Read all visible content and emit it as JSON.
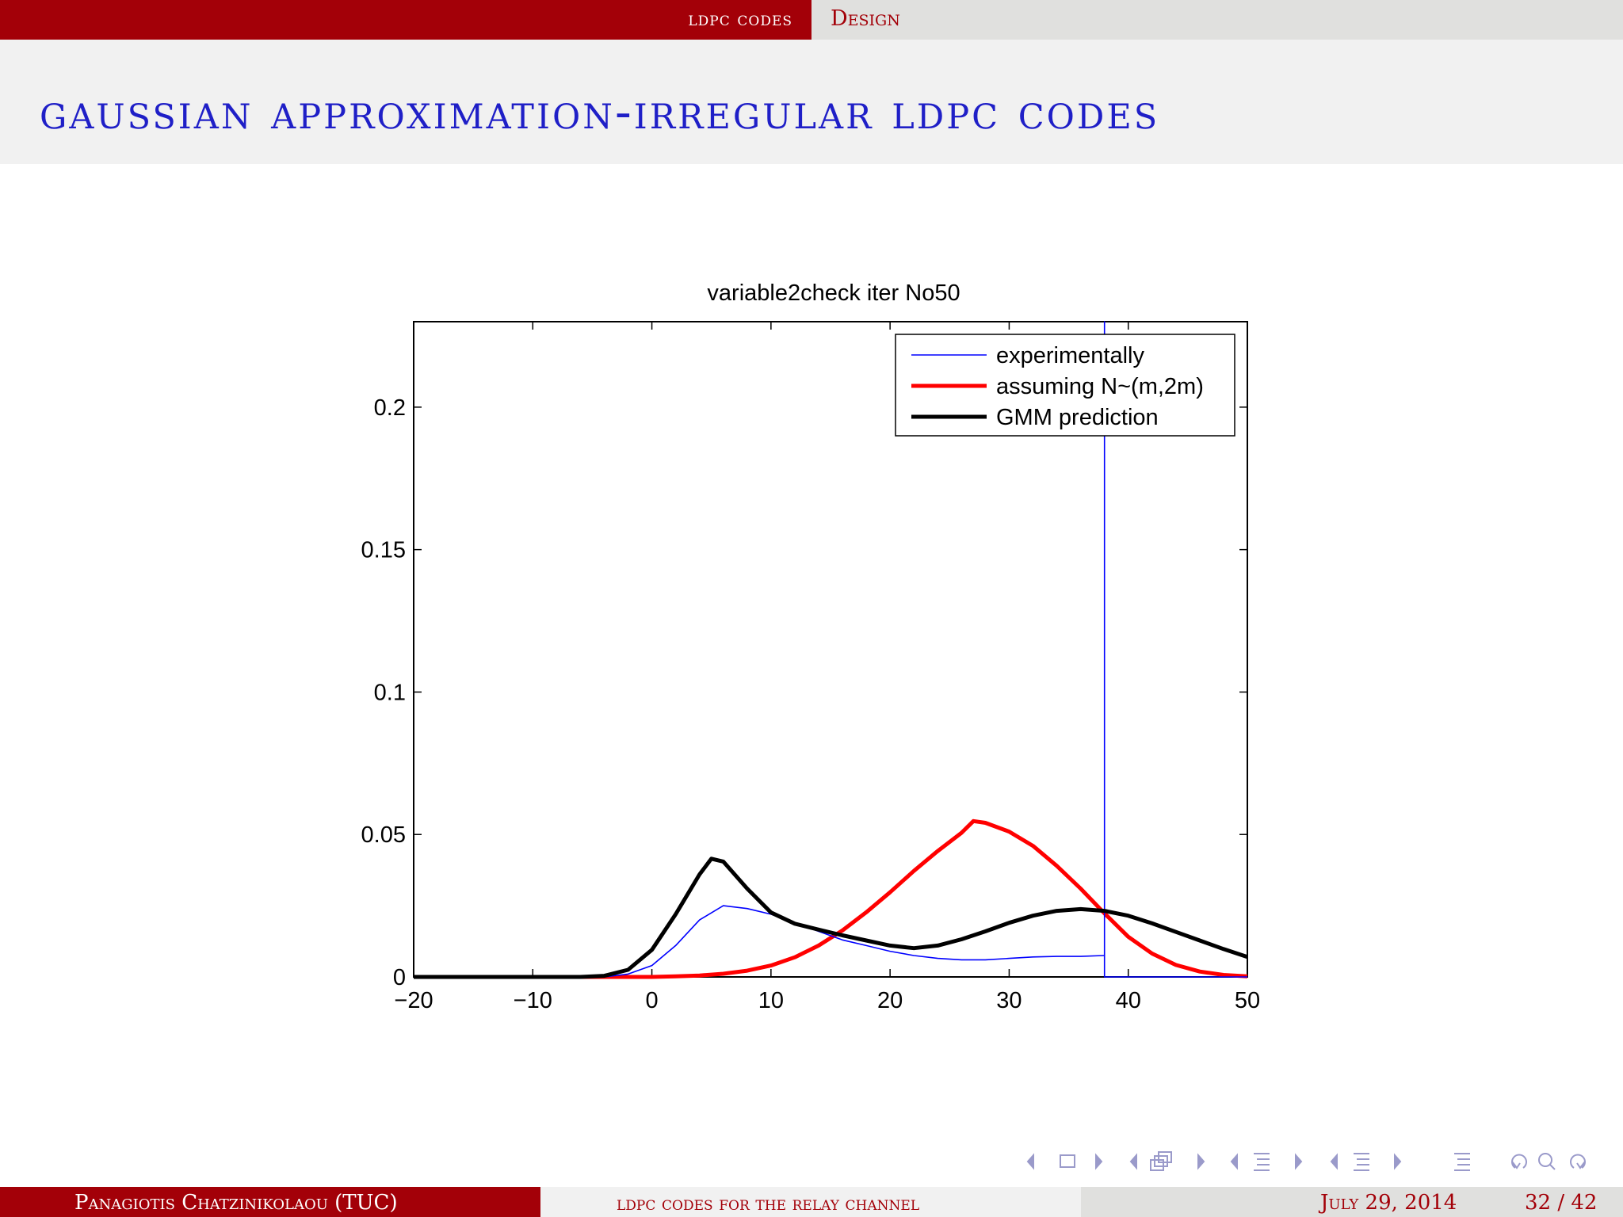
{
  "header": {
    "section": "ldpc codes",
    "subsection": "Design"
  },
  "frame": {
    "title": "gaussian approximation-irregular ldpc codes"
  },
  "chart_data": {
    "type": "line",
    "title": "variable2check iter No50",
    "xlabel": "",
    "ylabel": "",
    "xlim": [
      -20,
      50
    ],
    "ylim": [
      0,
      0.23
    ],
    "xticks": [
      -20,
      -10,
      0,
      10,
      20,
      30,
      40,
      50
    ],
    "xtick_labels": [
      "−20",
      "−10",
      "0",
      "10",
      "20",
      "30",
      "40",
      "50"
    ],
    "yticks": [
      0,
      0.05,
      0.1,
      0.15,
      0.2
    ],
    "ytick_labels": [
      "0",
      "0.05",
      "0.1",
      "0.15",
      "0.2"
    ],
    "grid": false,
    "legend_position": "top-right",
    "series": [
      {
        "name": "experimentally",
        "color": "#0000ff",
        "style": "thin",
        "x": [
          -20,
          -4,
          -2,
          0,
          2,
          4,
          6,
          8,
          10,
          12,
          14,
          16,
          18,
          20,
          22,
          24,
          26,
          28,
          30,
          32,
          34,
          36,
          37.9
        ],
        "y": [
          0,
          0,
          0.001,
          0.004,
          0.011,
          0.02,
          0.025,
          0.024,
          0.022,
          0.019,
          0.016,
          0.013,
          0.011,
          0.009,
          0.0075,
          0.0065,
          0.006,
          0.006,
          0.0065,
          0.007,
          0.0072,
          0.0072,
          0.0075
        ],
        "spike": {
          "x": 38,
          "ymax": 0.23
        },
        "tail": {
          "x": [
            38,
            50
          ],
          "y": [
            0,
            0
          ]
        }
      },
      {
        "name": "assuming N~(m,2m)",
        "color": "#ff0000",
        "style": "thick",
        "x": [
          -20,
          0,
          2,
          4,
          6,
          8,
          10,
          12,
          14,
          16,
          18,
          20,
          22,
          24,
          26,
          27,
          28,
          30,
          32,
          34,
          36,
          38,
          40,
          42,
          44,
          46,
          48,
          50
        ],
        "y": [
          0,
          0,
          0.0002,
          0.0005,
          0.0011,
          0.0022,
          0.004,
          0.0069,
          0.011,
          0.0163,
          0.0227,
          0.0297,
          0.0372,
          0.0442,
          0.0506,
          0.0547,
          0.0541,
          0.051,
          0.046,
          0.039,
          0.031,
          0.0223,
          0.0141,
          0.0082,
          0.0042,
          0.0019,
          0.0007,
          0.0002
        ]
      },
      {
        "name": "GMM prediction",
        "color": "#000000",
        "style": "thick",
        "x": [
          -20,
          -6,
          -4,
          -2,
          0,
          2,
          4,
          5,
          6,
          8,
          10,
          12,
          14,
          16,
          18,
          20,
          22,
          24,
          26,
          28,
          30,
          32,
          34,
          36,
          38,
          40,
          42,
          44,
          46,
          48,
          50
        ],
        "y": [
          0,
          0,
          0.0004,
          0.0025,
          0.0095,
          0.022,
          0.036,
          0.0415,
          0.0405,
          0.031,
          0.0226,
          0.0187,
          0.0166,
          0.0146,
          0.0128,
          0.011,
          0.0101,
          0.011,
          0.0132,
          0.016,
          0.019,
          0.0215,
          0.0232,
          0.0238,
          0.0232,
          0.0215,
          0.0188,
          0.0158,
          0.0128,
          0.0098,
          0.007
        ]
      }
    ]
  },
  "navigation": {
    "icons": [
      "nav-left-arrow",
      "frame-icon",
      "nav-right-arrow",
      "nav-left-arrow",
      "subsection-icon",
      "nav-right-arrow",
      "nav-left-arrow",
      "section-icon",
      "nav-right-arrow",
      "nav-left-arrow",
      "presentation-icon",
      "nav-right-arrow",
      "appendix-icon",
      "back-icon",
      "search-icon",
      "forward-icon"
    ]
  },
  "footer": {
    "author": "Panagiotis Chatzinikolaou  (TUC)",
    "title": "ldpc codes for the relay channel",
    "date": "July 29, 2014",
    "page": "32 / 42"
  },
  "colors": {
    "beamer_red": "#a30008",
    "title_blue": "#1f1fc7",
    "band_light": "#f1f1f1",
    "band_gray": "#e0e0de"
  }
}
